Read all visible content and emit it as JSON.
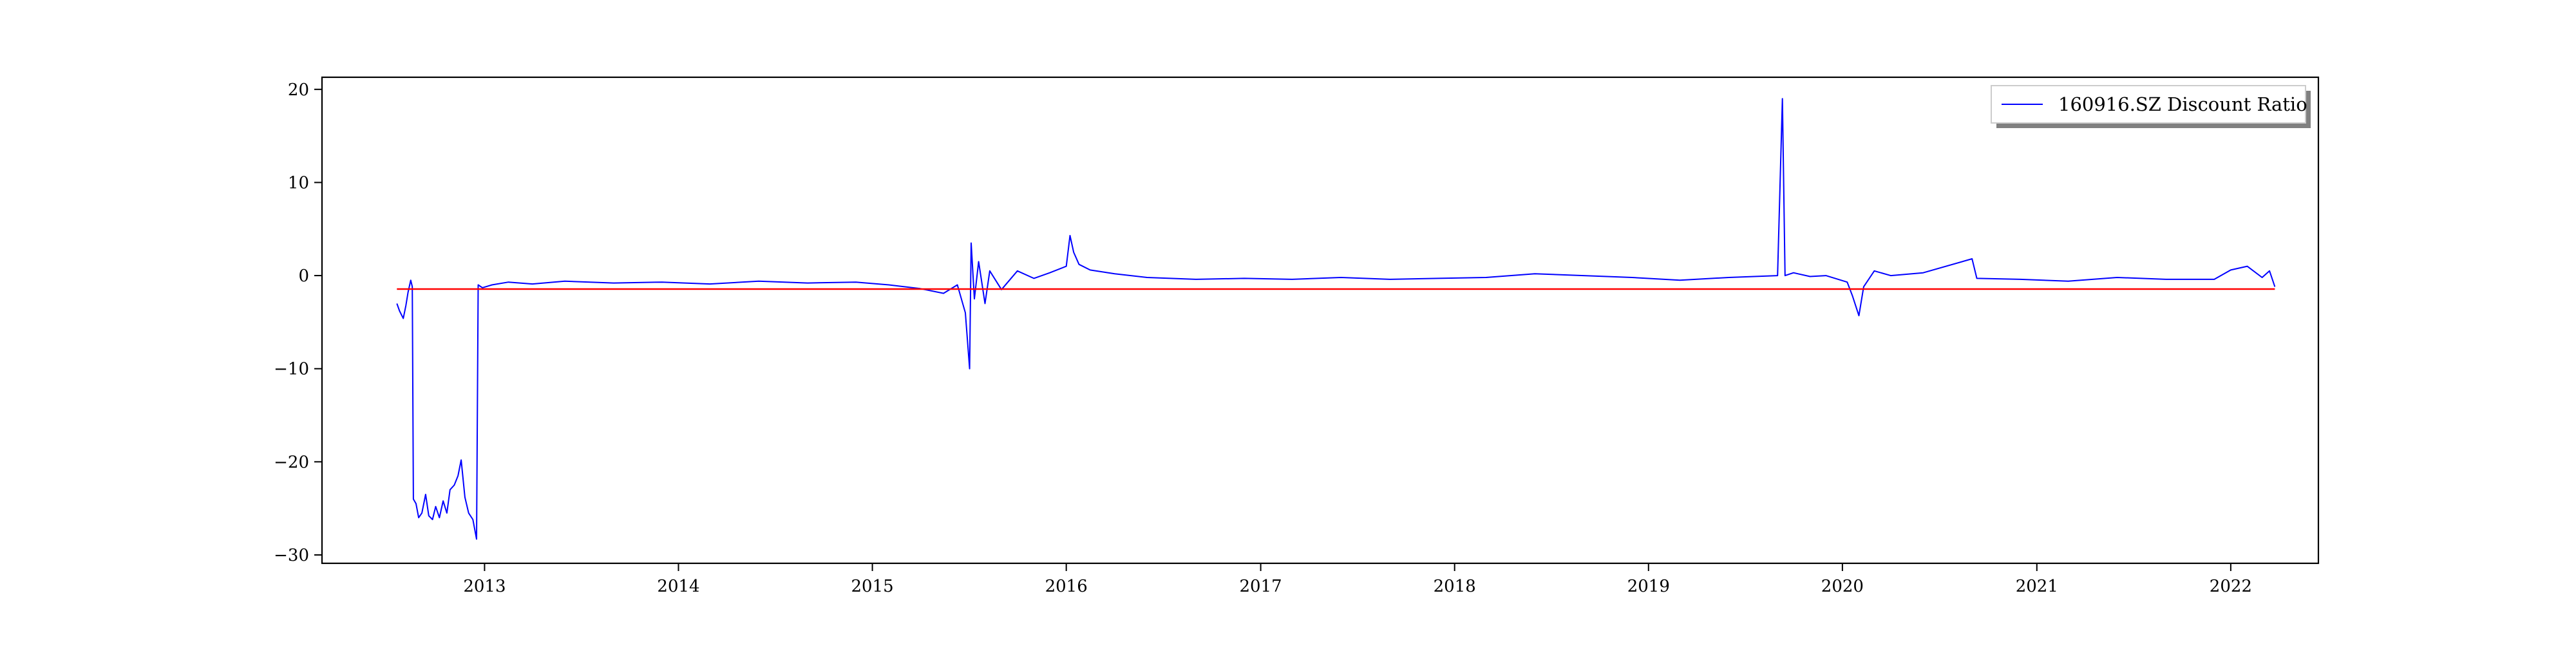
{
  "chart_data": {
    "type": "line",
    "title": "",
    "xlabel": "",
    "ylabel": "",
    "xlim": [
      "2012-03-01",
      "2022-06-15"
    ],
    "ylim": [
      -30.9,
      21.3
    ],
    "x_ticks": [
      "2013",
      "2014",
      "2015",
      "2016",
      "2017",
      "2018",
      "2019",
      "2020",
      "2021",
      "2022"
    ],
    "y_ticks": [
      20,
      10,
      0,
      -10,
      -20,
      -30
    ],
    "y_tick_labels": [
      "20",
      "10",
      "0",
      "−10",
      "−20",
      "−30"
    ],
    "grid": false,
    "legend": {
      "position": "top-right",
      "entries": [
        "160916.SZ Discount Ratio"
      ]
    },
    "series": [
      {
        "name": "160916.SZ Discount Ratio",
        "color": "#0000ff",
        "points": [
          [
            "2012-07-20",
            -3.0
          ],
          [
            "2012-07-25",
            -3.8
          ],
          [
            "2012-08-01",
            -4.6
          ],
          [
            "2012-08-06",
            -3.2
          ],
          [
            "2012-08-10",
            -1.8
          ],
          [
            "2012-08-15",
            -0.5
          ],
          [
            "2012-08-18",
            -1.2
          ],
          [
            "2012-08-20",
            -24.0
          ],
          [
            "2012-08-25",
            -24.5
          ],
          [
            "2012-08-30",
            -26.0
          ],
          [
            "2012-09-05",
            -25.5
          ],
          [
            "2012-09-12",
            -23.5
          ],
          [
            "2012-09-18",
            -25.8
          ],
          [
            "2012-09-25",
            -26.2
          ],
          [
            "2012-10-01",
            -24.8
          ],
          [
            "2012-10-08",
            -26.0
          ],
          [
            "2012-10-15",
            -24.2
          ],
          [
            "2012-10-22",
            -25.5
          ],
          [
            "2012-10-28",
            -23.0
          ],
          [
            "2012-11-05",
            -22.5
          ],
          [
            "2012-11-12",
            -21.5
          ],
          [
            "2012-11-18",
            -19.8
          ],
          [
            "2012-11-25",
            -23.8
          ],
          [
            "2012-12-02",
            -25.5
          ],
          [
            "2012-12-10",
            -26.2
          ],
          [
            "2012-12-17",
            -28.3
          ],
          [
            "2012-12-20",
            -1.0
          ],
          [
            "2012-12-28",
            -1.3
          ],
          [
            "2013-01-15",
            -1.0
          ],
          [
            "2013-02-15",
            -0.7
          ],
          [
            "2013-04-01",
            -0.9
          ],
          [
            "2013-06-01",
            -0.6
          ],
          [
            "2013-09-01",
            -0.8
          ],
          [
            "2013-12-01",
            -0.7
          ],
          [
            "2014-03-01",
            -0.9
          ],
          [
            "2014-06-01",
            -0.6
          ],
          [
            "2014-09-01",
            -0.8
          ],
          [
            "2014-12-01",
            -0.7
          ],
          [
            "2015-02-01",
            -1.0
          ],
          [
            "2015-04-01",
            -1.4
          ],
          [
            "2015-05-15",
            -1.9
          ],
          [
            "2015-06-10",
            -1.0
          ],
          [
            "2015-06-25",
            -4.0
          ],
          [
            "2015-07-03",
            -10.0
          ],
          [
            "2015-07-06",
            3.5
          ],
          [
            "2015-07-12",
            -2.5
          ],
          [
            "2015-07-20",
            1.5
          ],
          [
            "2015-08-01",
            -3.0
          ],
          [
            "2015-08-10",
            0.5
          ],
          [
            "2015-09-01",
            -1.5
          ],
          [
            "2015-10-01",
            0.5
          ],
          [
            "2015-11-01",
            -0.3
          ],
          [
            "2015-12-01",
            0.3
          ],
          [
            "2016-01-01",
            1.0
          ],
          [
            "2016-01-08",
            4.3
          ],
          [
            "2016-01-15",
            2.5
          ],
          [
            "2016-01-25",
            1.2
          ],
          [
            "2016-02-15",
            0.6
          ],
          [
            "2016-04-01",
            0.2
          ],
          [
            "2016-06-01",
            -0.2
          ],
          [
            "2016-09-01",
            -0.4
          ],
          [
            "2016-12-01",
            -0.3
          ],
          [
            "2017-03-01",
            -0.4
          ],
          [
            "2017-06-01",
            -0.2
          ],
          [
            "2017-09-01",
            -0.4
          ],
          [
            "2017-12-01",
            -0.3
          ],
          [
            "2018-03-01",
            -0.2
          ],
          [
            "2018-06-01",
            0.2
          ],
          [
            "2018-09-01",
            0.0
          ],
          [
            "2018-12-01",
            -0.2
          ],
          [
            "2019-03-01",
            -0.5
          ],
          [
            "2019-06-01",
            -0.2
          ],
          [
            "2019-09-01",
            0.0
          ],
          [
            "2019-09-10",
            19.0
          ],
          [
            "2019-09-15",
            0.0
          ],
          [
            "2019-10-01",
            0.3
          ],
          [
            "2019-11-01",
            -0.1
          ],
          [
            "2019-12-01",
            0.0
          ],
          [
            "2020-01-10",
            -0.7
          ],
          [
            "2020-01-20",
            -2.2
          ],
          [
            "2020-02-01",
            -4.3
          ],
          [
            "2020-02-10",
            -1.2
          ],
          [
            "2020-03-01",
            0.5
          ],
          [
            "2020-04-01",
            0.0
          ],
          [
            "2020-06-01",
            0.3
          ],
          [
            "2020-09-01",
            1.8
          ],
          [
            "2020-09-10",
            -0.3
          ],
          [
            "2020-12-01",
            -0.4
          ],
          [
            "2021-03-01",
            -0.6
          ],
          [
            "2021-06-01",
            -0.2
          ],
          [
            "2021-09-01",
            -0.4
          ],
          [
            "2021-12-01",
            -0.4
          ],
          [
            "2022-01-01",
            0.6
          ],
          [
            "2022-02-01",
            1.0
          ],
          [
            "2022-03-01",
            -0.2
          ],
          [
            "2022-03-15",
            0.5
          ],
          [
            "2022-03-25",
            -1.2
          ]
        ]
      },
      {
        "name": "",
        "color": "#ff0000",
        "points": [
          [
            "2012-07-20",
            -1.45
          ],
          [
            "2022-03-25",
            -1.45
          ]
        ]
      }
    ]
  }
}
